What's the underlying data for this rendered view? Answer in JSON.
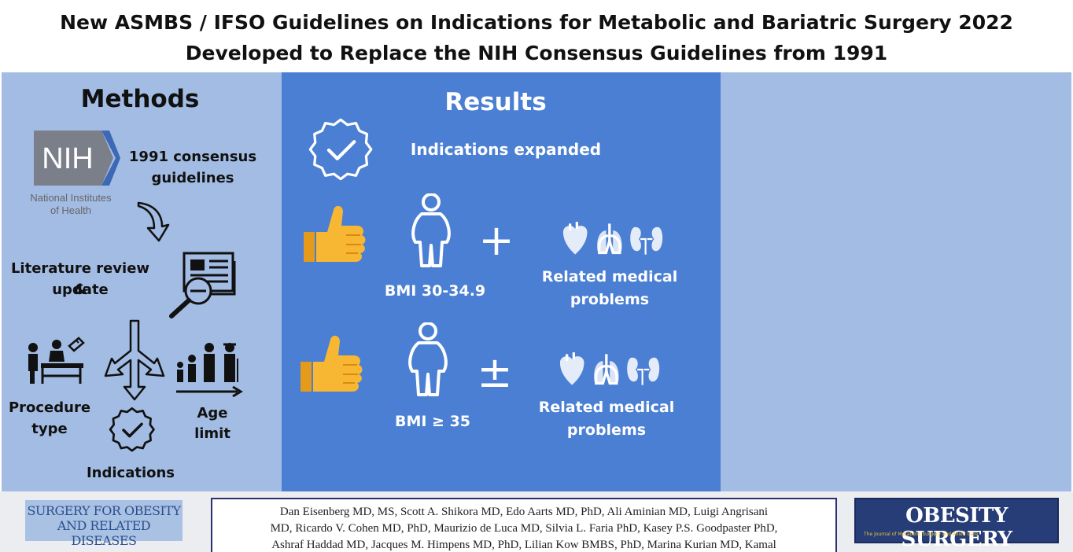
{
  "title": {
    "line1": "New ASMBS / IFSO Guidelines on Indications for Metabolic and Bariatric Surgery 2022",
    "line2": "Developed to Replace the NIH Consensus Guidelines from 1991"
  },
  "methods": {
    "heading": "Methods",
    "nih_logo_text": "NIH",
    "nih_caption": [
      "National Institutes",
      "of Health"
    ],
    "consensus": [
      "1991 consensus",
      "guidelines"
    ],
    "literature": [
      "Literature review &",
      "update"
    ],
    "procedure": [
      "Procedure",
      "type"
    ],
    "age": [
      "Age",
      "limit"
    ],
    "indications": "Indications"
  },
  "results": {
    "heading": "Results",
    "expanded": "Indications expanded",
    "row1": {
      "operator": "+",
      "bmi": "BMI 30-34.9",
      "problems": [
        "Related medical",
        "problems"
      ]
    },
    "row2": {
      "operator": "±",
      "bmi": "BMI ≥ 35",
      "problems": [
        "Related medical",
        "problems"
      ]
    }
  },
  "footer": {
    "journal_left": [
      "SURGERY FOR OBESITY",
      "AND RELATED DISEASES"
    ],
    "authors": [
      "Dan Eisenberg MD, MS, Scott A. Shikora MD, Edo Aarts MD, PhD, Ali Aminian MD, Luigi Angrisani",
      "MD, Ricardo V. Cohen MD, PhD, Maurizio de Luca MD, Silvia L. Faria PhD, Kasey P.S. Goodpaster PhD,",
      "Ashraf Haddad MD, Jacques M. Himpens MD, PhD, Lilian Kow BMBS, PhD, Marina Kurian MD, Kamal"
    ],
    "journal_right_title": "OBESITY SURGERY",
    "journal_right_sub": "The Journal of Metabolic Surgery and Allied Care"
  },
  "colors": {
    "panel_light": "#a3bce3",
    "panel_dark": "#4a7fd3",
    "thumb": "#f7b733",
    "journal_navy": "#263d78"
  }
}
